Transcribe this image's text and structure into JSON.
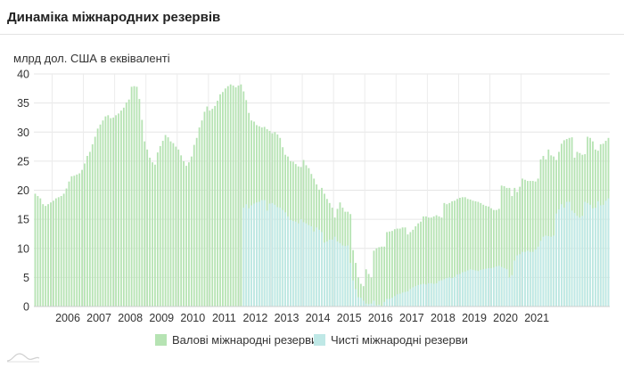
{
  "header": {
    "title": "Динаміка міжнародних резервів"
  },
  "chart_data": {
    "type": "bar",
    "ylabel": "млрд дол. США в еквіваленті",
    "ylim": [
      0,
      40
    ],
    "yticks": [
      "0",
      "5",
      "10",
      "15",
      "20",
      "25",
      "30",
      "35",
      "40"
    ],
    "xticks": [
      "2006",
      "2007",
      "2008",
      "2009",
      "2010",
      "2011",
      "2012",
      "2013",
      "2014",
      "2015",
      "2016",
      "2017",
      "2018",
      "2019",
      "2020",
      "2021"
    ],
    "grid": "vertical-and-horizontal",
    "legend_position": "bottom",
    "start_period": "2005-06",
    "series": [
      {
        "name": "Валові міжнародні резерви",
        "color": "#b6e3b3",
        "values": [
          19.4,
          19.0,
          18.6,
          17.6,
          17.3,
          17.6,
          17.9,
          18.2,
          18.6,
          18.8,
          19.0,
          19.4,
          20.3,
          21.5,
          22.4,
          22.5,
          22.7,
          22.9,
          23.5,
          24.6,
          25.9,
          26.6,
          27.9,
          29.2,
          30.6,
          31.3,
          32.0,
          32.7,
          32.9,
          32.4,
          32.5,
          32.9,
          33.2,
          33.7,
          34.2,
          35.1,
          35.6,
          37.8,
          37.9,
          37.8,
          35.7,
          32.1,
          28.4,
          27.0,
          25.6,
          24.8,
          24.4,
          26.5,
          27.6,
          28.5,
          29.5,
          29.1,
          28.4,
          28.1,
          27.5,
          27.0,
          26.0,
          25.0,
          24.2,
          24.8,
          25.8,
          27.8,
          29.0,
          30.8,
          32.0,
          33.5,
          34.4,
          33.7,
          34.0,
          34.5,
          35.4,
          36.5,
          36.9,
          37.5,
          37.9,
          38.2,
          38.0,
          37.7,
          38.0,
          38.2,
          37.0,
          35.5,
          33.3,
          32.0,
          31.8,
          31.2,
          31.0,
          30.8,
          30.9,
          30.5,
          30.2,
          29.8,
          30.0,
          29.6,
          29.0,
          27.4,
          26.1,
          25.8,
          25.0,
          24.9,
          24.5,
          24.1,
          24.0,
          25.2,
          24.3,
          23.8,
          22.8,
          22.0,
          21.0,
          20.1,
          20.4,
          19.4,
          18.5,
          17.8,
          17.0,
          15.3,
          16.8,
          17.9,
          17.0,
          16.3,
          16.3,
          15.9,
          9.7,
          7.5,
          5.0,
          3.9,
          3.5,
          6.4,
          5.6,
          5.0,
          9.6,
          10.0,
          10.2,
          10.3,
          10.3,
          12.8,
          12.9,
          13.0,
          13.3,
          13.4,
          13.4,
          13.6,
          13.6,
          12.4,
          12.8,
          13.2,
          13.8,
          14.3,
          14.6,
          15.5,
          15.5,
          15.3,
          15.3,
          15.5,
          15.7,
          15.5,
          15.3,
          17.8,
          17.6,
          17.8,
          18.1,
          18.2,
          18.5,
          18.7,
          18.8,
          18.8,
          18.5,
          18.4,
          18.2,
          18.1,
          18.0,
          17.8,
          17.5,
          17.3,
          17.2,
          16.9,
          16.6,
          16.6,
          16.8,
          20.8,
          20.7,
          20.4,
          20.4,
          19.0,
          20.4,
          19.7,
          20.6,
          22.0,
          21.8,
          21.6,
          21.6,
          21.6,
          21.5,
          22.0,
          25.3,
          25.9,
          25.3,
          27.0,
          26.0,
          25.8,
          25.2,
          26.6,
          28.0,
          28.6,
          28.8,
          29.0,
          29.1,
          25.6,
          26.6,
          26.4,
          26.1,
          26.2,
          29.2,
          29.0,
          28.4,
          27.0,
          26.8,
          27.9,
          28.0,
          28.5,
          29.0
        ]
      },
      {
        "name": "Чисті міжнародні резерви",
        "color": "#bfe8e6",
        "values": [
          17.0,
          17.6,
          16.9,
          17.4,
          17.7,
          17.9,
          18.0,
          18.3,
          18.3,
          16.5,
          17.7,
          17.8,
          17.5,
          17.1,
          17.0,
          16.6,
          16.2,
          15.5,
          14.9,
          14.7,
          14.6,
          14.3,
          15.0,
          14.5,
          14.3,
          14.0,
          13.8,
          12.9,
          13.6,
          13.2,
          12.8,
          11.0,
          11.2,
          11.5,
          11.5,
          12.0,
          11.2,
          10.9,
          10.5,
          10.4,
          10.5,
          7.5,
          4.5,
          3.0,
          1.6,
          1.5,
          1.0,
          0.5,
          0.4,
          0.5,
          1.0,
          0.2,
          0.3,
          0.1,
          0.8,
          1.3,
          1.3,
          1.5,
          1.8,
          2.1,
          2.2,
          2.4,
          2.5,
          2.6,
          3.0,
          3.3,
          3.5,
          3.7,
          3.8,
          3.9,
          3.8,
          4.0,
          4.0,
          3.9,
          4.0,
          4.4,
          4.5,
          4.7,
          4.9,
          5.0,
          4.9,
          5.1,
          5.5,
          5.6,
          5.9,
          6.0,
          6.2,
          6.4,
          6.3,
          6.2,
          6.1,
          6.3,
          6.4,
          6.5,
          6.6,
          6.6,
          6.7,
          6.9,
          7.0,
          6.8,
          6.6,
          6.4,
          5.0,
          5.4,
          7.9,
          8.8,
          9.0,
          9.4,
          9.4,
          9.6,
          9.4,
          9.4,
          9.8,
          10.3,
          11.3,
          12.0,
          12.2,
          12.1,
          12.0,
          12.2,
          16.0,
          16.7,
          17.6,
          17.0,
          18.0,
          18.0,
          16.5,
          16.1,
          15.6,
          15.3,
          15.6,
          18.0,
          17.8,
          17.5,
          16.9,
          17.0,
          18.1,
          17.4,
          17.5,
          18.2,
          18.6
        ]
      }
    ]
  },
  "legend": {
    "items": [
      "Валові міжнародні резерви",
      "Чисті міжнародні резерви"
    ]
  }
}
